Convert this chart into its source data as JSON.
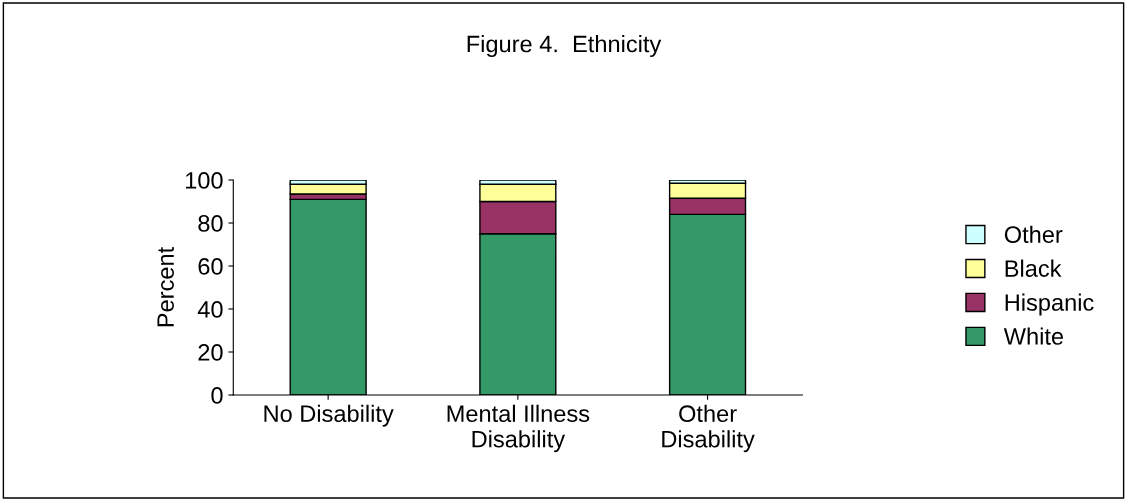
{
  "chart_data": {
    "type": "bar",
    "title": "Figure 4.  Ethnicity",
    "ylabel": "Percent",
    "categories": [
      "No Disability",
      "Mental Illness\nDisability",
      "Other\nDisability"
    ],
    "stacked": true,
    "ylim": [
      0,
      100
    ],
    "yticks": [
      0,
      20,
      40,
      60,
      80,
      100
    ],
    "grid": false,
    "legend": "right",
    "series": [
      {
        "name": "White",
        "color": "#339966",
        "values": [
          91,
          75,
          84
        ]
      },
      {
        "name": "Hispanic",
        "color": "#993366",
        "values": [
          2.5,
          15,
          7.5
        ]
      },
      {
        "name": "Black",
        "color": "#ffff99",
        "values": [
          4.5,
          8,
          7
        ]
      },
      {
        "name": "Other",
        "color": "#ccffff",
        "values": [
          2,
          2,
          1.5
        ]
      }
    ]
  }
}
